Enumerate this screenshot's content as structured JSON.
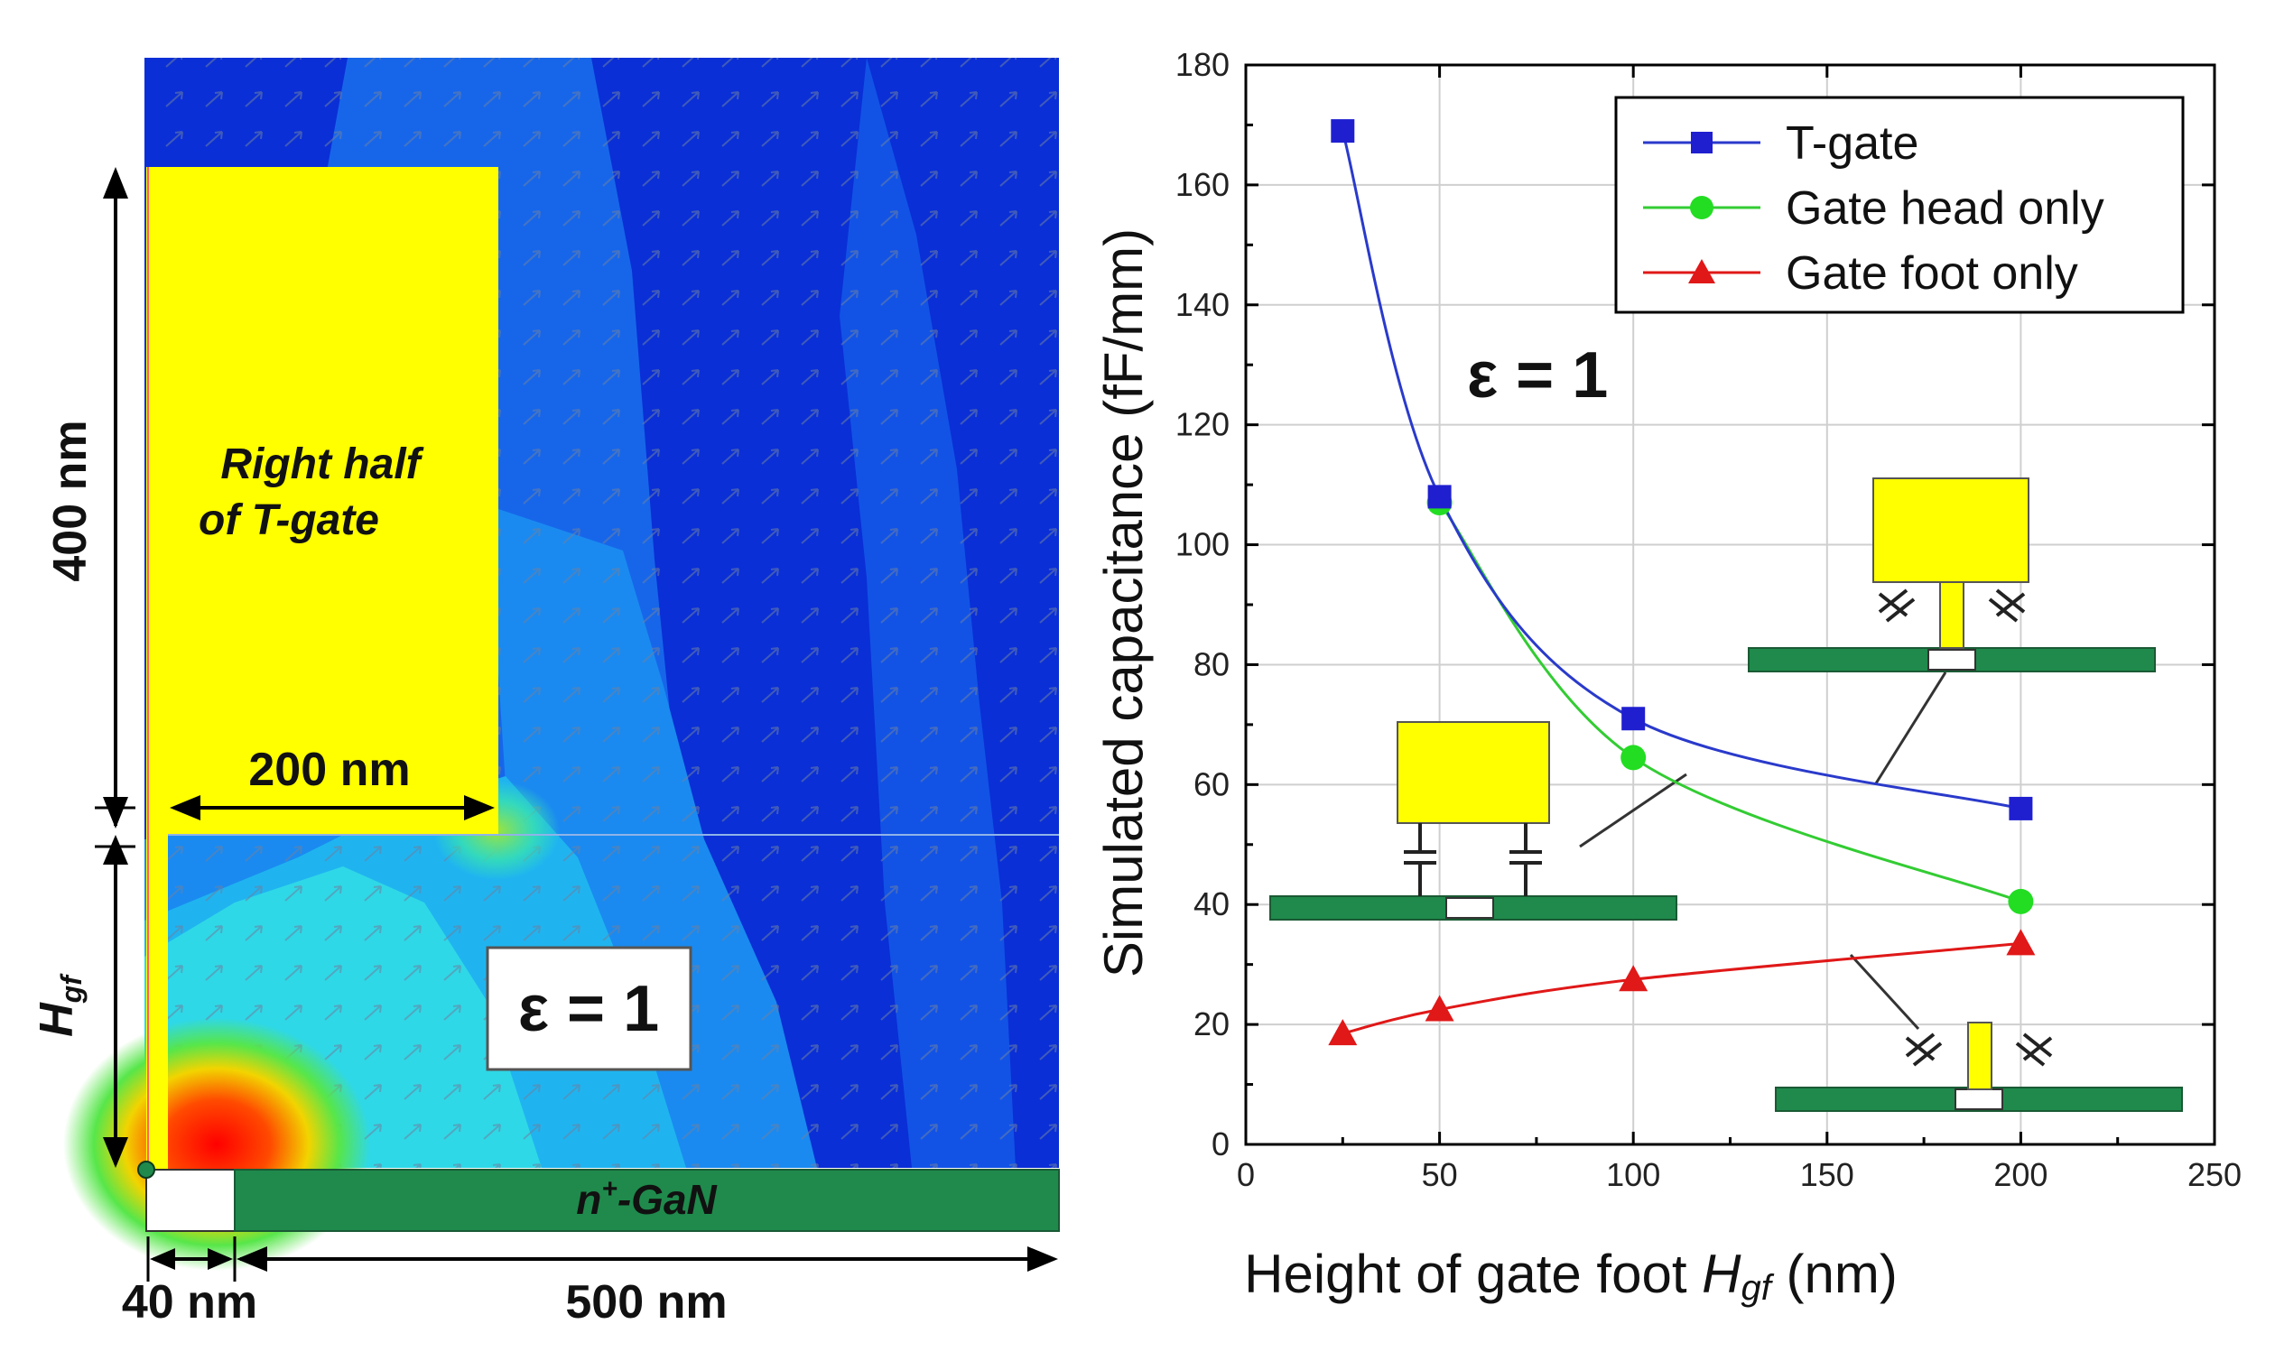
{
  "left_panel": {
    "gate_label_line1": "Right half",
    "gate_label_line2": "of T-gate",
    "eps_label": "ε = 1",
    "dim_400": "400 nm",
    "dim_200": "200 nm",
    "dim_40": "40 nm",
    "dim_500": "500 nm",
    "hgf_main": "H",
    "hgf_sub": "gf",
    "substrate_prefix": "n",
    "substrate_sup": "+",
    "substrate_suffix": "-GaN",
    "colors": {
      "gate": "#ffff00",
      "substrate": "#1f8a4c",
      "field_low": "#0a2fd6",
      "field_high": "#ff1a00"
    }
  },
  "chart_data": {
    "type": "line",
    "title": "",
    "xlabel_main": "Height of gate foot ",
    "xlabel_var": "H",
    "xlabel_sub": "gf",
    "xlabel_unit": " (nm)",
    "ylabel": "Simulated capacitance (fF/mm)",
    "xlim": [
      0,
      250
    ],
    "ylim": [
      0,
      180
    ],
    "xticks": [
      0,
      50,
      100,
      150,
      200,
      250
    ],
    "yticks": [
      0,
      20,
      40,
      60,
      80,
      100,
      120,
      140,
      160,
      180
    ],
    "grid": true,
    "legend_position": "top-right",
    "annotation": "ε = 1",
    "series": [
      {
        "name": "T-gate",
        "color": "#1f1fd0",
        "line_color": "#2a3acb",
        "marker": "square",
        "x": [
          25,
          50,
          100,
          200
        ],
        "y": [
          169,
          108,
          71,
          56
        ]
      },
      {
        "name": "Gate head only",
        "color": "#22dd22",
        "line_color": "#33cc33",
        "marker": "circle",
        "x": [
          50,
          100,
          200
        ],
        "y": [
          107,
          64.5,
          40.5
        ]
      },
      {
        "name": "Gate foot only",
        "color": "#e01818",
        "line_color": "#e01818",
        "marker": "triangle",
        "x": [
          25,
          50,
          100,
          200
        ],
        "y": [
          18.5,
          22.5,
          27.5,
          33.5
        ]
      }
    ]
  }
}
